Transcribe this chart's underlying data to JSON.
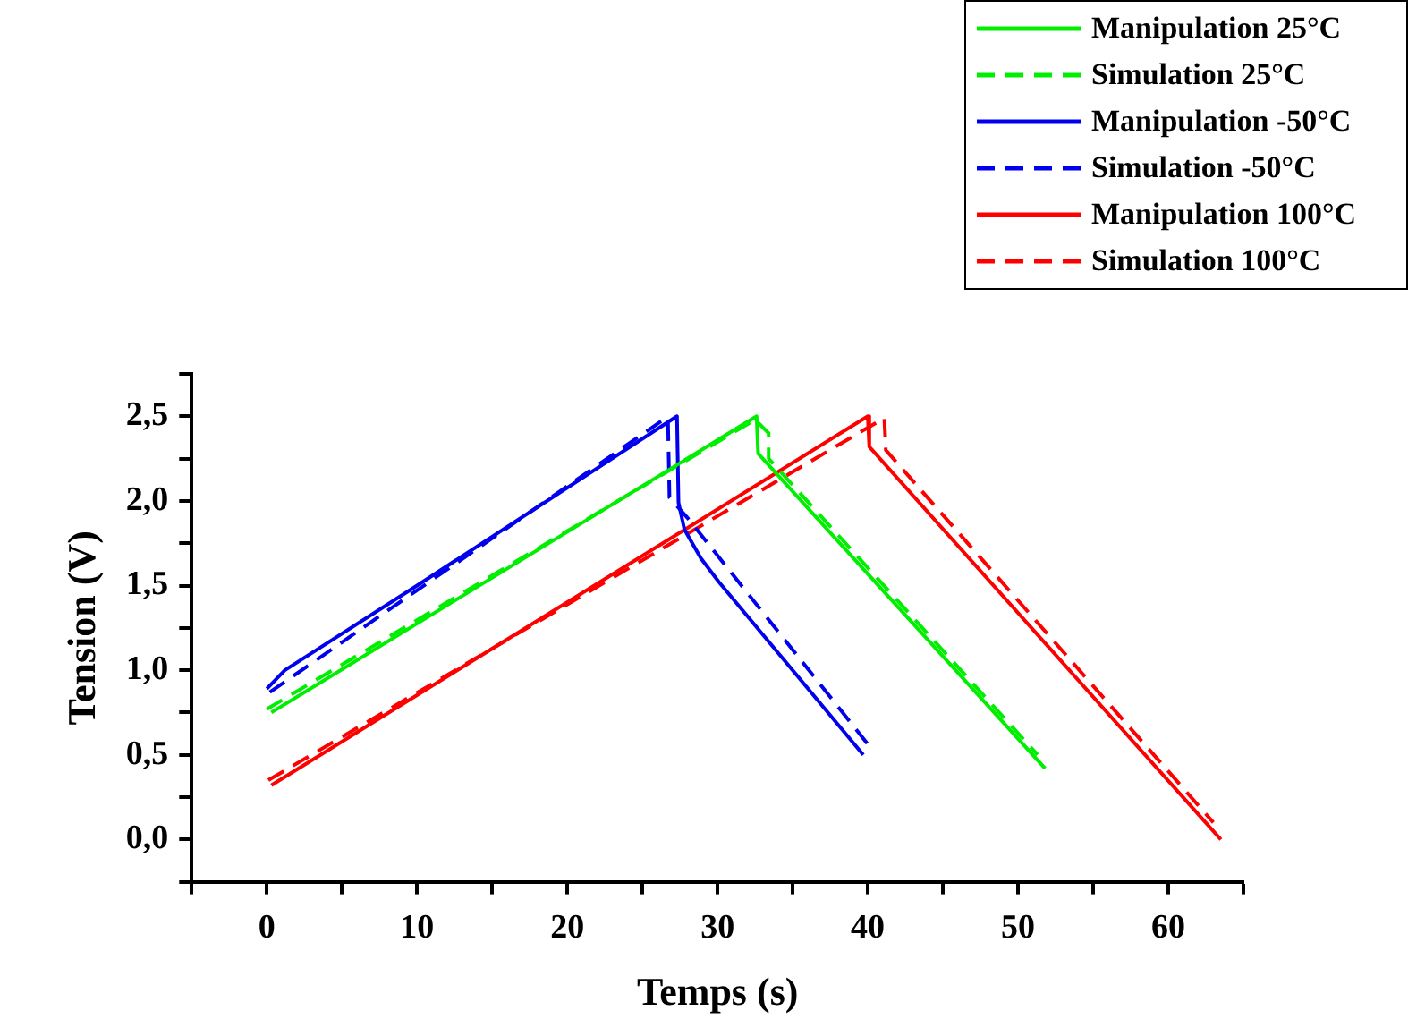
{
  "chart_data": {
    "type": "line",
    "xlabel": "Temps (s)",
    "ylabel": "Tension (V)",
    "xlim": [
      -5,
      65
    ],
    "ylim": [
      -0.25,
      2.75
    ],
    "xticks": [
      {
        "value": -5,
        "label": null
      },
      0,
      {
        "value": 5,
        "label": null
      },
      10,
      {
        "value": 15,
        "label": null
      },
      20,
      {
        "value": 25,
        "label": null
      },
      30,
      {
        "value": 35,
        "label": null
      },
      40,
      {
        "value": 45,
        "label": null
      },
      50,
      {
        "value": 55,
        "label": null
      },
      60,
      {
        "value": 65,
        "label": null
      }
    ],
    "yticks": [
      {
        "value": -0.25,
        "label": null
      },
      {
        "value": 0,
        "label": "0,0"
      },
      {
        "value": 0.25,
        "label": null
      },
      {
        "value": 0.5,
        "label": "0,5"
      },
      {
        "value": 0.75,
        "label": null
      },
      {
        "value": 1,
        "label": "1,0"
      },
      {
        "value": 1.25,
        "label": null
      },
      {
        "value": 1.5,
        "label": "1,5"
      },
      {
        "value": 1.75,
        "label": null
      },
      {
        "value": 2,
        "label": "2,0"
      },
      {
        "value": 2.25,
        "label": null
      },
      {
        "value": 2.5,
        "label": "2,5"
      },
      {
        "value": 2.75,
        "label": null
      }
    ],
    "grid": false,
    "legend": "top right",
    "marker": "none",
    "series": [
      {
        "name": "Manipulation 25°C",
        "color": "#00ee00",
        "line_style": "solid",
        "x": [
          0.3,
          32.6,
          32.7,
          51.8
        ],
        "values": [
          0.75,
          2.5,
          2.28,
          0.42
        ]
      },
      {
        "name": "Simulation 25°C",
        "color": "#00ee00",
        "line_style": "dashed",
        "x": [
          0,
          32.5,
          33.4,
          33.4,
          51.3
        ],
        "values": [
          0.77,
          2.48,
          2.4,
          2.25,
          0.5
        ]
      },
      {
        "name": "Manipulation -50°C",
        "color": "#0000ee",
        "line_style": "solid",
        "x": [
          0,
          1.2,
          10,
          27.3,
          27.4,
          27.8,
          28.9,
          30.1,
          39.7
        ],
        "values": [
          0.89,
          1.0,
          1.5,
          2.5,
          1.99,
          1.83,
          1.66,
          1.52,
          0.5
        ]
      },
      {
        "name": "Simulation -50°C",
        "color": "#0000ee",
        "line_style": "dashed",
        "x": [
          0.2,
          26.4,
          26.7,
          26.8,
          27.2,
          28,
          40.3
        ],
        "values": [
          0.87,
          2.48,
          2.48,
          2.02,
          1.98,
          1.9,
          0.53
        ]
      },
      {
        "name": "Manipulation 100°C",
        "color": "#ff0000",
        "line_style": "solid",
        "x": [
          0.3,
          40,
          40.1,
          63.5
        ],
        "values": [
          0.32,
          2.5,
          2.32,
          0.0
        ]
      },
      {
        "name": "Simulation 100°C",
        "color": "#ff0000",
        "line_style": "dashed",
        "x": [
          0.1,
          41.1,
          41.2,
          63
        ],
        "values": [
          0.35,
          2.49,
          2.3,
          0.1
        ]
      }
    ]
  }
}
